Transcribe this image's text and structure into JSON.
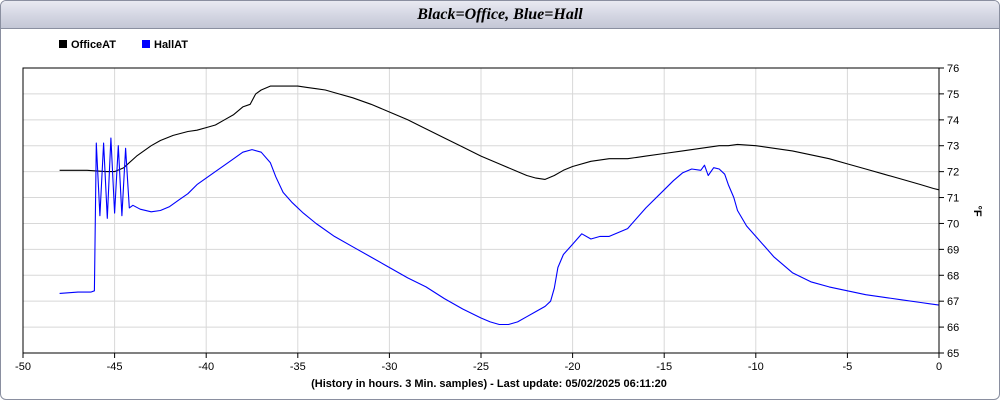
{
  "chart_data": {
    "type": "line",
    "title": "Black=Office, Blue=Hall",
    "xlabel": "(History in hours. 3 Min. samples) - Last update: 05/02/2025 06:11:20",
    "ylabel": "°F",
    "xlim": [
      -50,
      0
    ],
    "ylim": [
      65,
      76
    ],
    "x_ticks": [
      "-50",
      "-45",
      "-40",
      "-35",
      "-30",
      "-25",
      "-20",
      "-15",
      "-10",
      "-5",
      "0"
    ],
    "y_ticks": [
      "65",
      "66",
      "67",
      "68",
      "69",
      "70",
      "71",
      "72",
      "73",
      "74",
      "75",
      "76"
    ],
    "grid": true,
    "legend_position": "top-left",
    "series": [
      {
        "name": "OfficeAT",
        "color": "#000000",
        "x": [
          -48,
          -46.5,
          -45.5,
          -45,
          -44.5,
          -43.8,
          -43,
          -42.5,
          -41.8,
          -41,
          -40.5,
          -40,
          -39.5,
          -39,
          -38.5,
          -38,
          -37.6,
          -37.3,
          -37,
          -36.5,
          -36,
          -35.5,
          -35,
          -34.5,
          -34,
          -33.5,
          -33,
          -32,
          -31,
          -30,
          -29,
          -28,
          -27,
          -26,
          -25,
          -24,
          -23,
          -22.5,
          -22,
          -21.5,
          -21,
          -20.5,
          -20,
          -19,
          -18,
          -17,
          -16,
          -15,
          -14,
          -13,
          -12,
          -11.5,
          -11,
          -10,
          -9,
          -8,
          -7,
          -6,
          -5,
          -4,
          -3,
          -2,
          -1,
          -0.3,
          0
        ],
        "y": [
          72.05,
          72.05,
          72.0,
          72.0,
          72.15,
          72.6,
          73.0,
          73.2,
          73.4,
          73.55,
          73.6,
          73.7,
          73.8,
          74.0,
          74.2,
          74.5,
          74.6,
          75.0,
          75.15,
          75.3,
          75.3,
          75.3,
          75.3,
          75.25,
          75.2,
          75.15,
          75.05,
          74.85,
          74.6,
          74.3,
          74.0,
          73.65,
          73.3,
          72.95,
          72.6,
          72.3,
          72.0,
          71.85,
          71.75,
          71.7,
          71.85,
          72.05,
          72.2,
          72.4,
          72.5,
          72.5,
          72.6,
          72.7,
          72.8,
          72.9,
          73.0,
          73.0,
          73.05,
          73.0,
          72.9,
          72.8,
          72.65,
          72.5,
          72.3,
          72.1,
          71.9,
          71.7,
          71.5,
          71.35,
          71.3
        ]
      },
      {
        "name": "HallAT",
        "color": "#0000ff",
        "x": [
          -48,
          -47,
          -46.3,
          -46.1,
          -46.0,
          -45.8,
          -45.6,
          -45.4,
          -45.2,
          -45.0,
          -44.8,
          -44.6,
          -44.4,
          -44.2,
          -44.0,
          -43.6,
          -43,
          -42.5,
          -42,
          -41.5,
          -41,
          -40.5,
          -40,
          -39.5,
          -39,
          -38.5,
          -38,
          -37.5,
          -37,
          -36.5,
          -36.2,
          -35.8,
          -35.3,
          -34.7,
          -34,
          -33,
          -32,
          -31,
          -30,
          -29,
          -28,
          -27,
          -26,
          -25,
          -24.5,
          -24,
          -23.5,
          -23,
          -22.5,
          -22,
          -21.5,
          -21.2,
          -21,
          -20.8,
          -20.5,
          -20,
          -19.5,
          -19,
          -18.5,
          -18,
          -17,
          -16,
          -15,
          -14.5,
          -14,
          -13.5,
          -13,
          -12.8,
          -12.6,
          -12.3,
          -12,
          -11.7,
          -11.5,
          -11.2,
          -11,
          -10.5,
          -10,
          -9.5,
          -9,
          -8,
          -7,
          -6,
          -5,
          -4,
          -3,
          -2,
          -1,
          -0.5,
          0
        ],
        "y": [
          67.3,
          67.35,
          67.35,
          67.4,
          73.1,
          70.3,
          73.1,
          70.2,
          73.3,
          70.4,
          73.0,
          70.3,
          72.9,
          70.6,
          70.7,
          70.55,
          70.45,
          70.5,
          70.65,
          70.9,
          71.15,
          71.5,
          71.75,
          72.0,
          72.25,
          72.5,
          72.75,
          72.85,
          72.75,
          72.35,
          71.8,
          71.2,
          70.8,
          70.4,
          70.0,
          69.5,
          69.1,
          68.7,
          68.3,
          67.9,
          67.55,
          67.1,
          66.7,
          66.35,
          66.2,
          66.1,
          66.1,
          66.2,
          66.4,
          66.6,
          66.8,
          67.0,
          67.5,
          68.3,
          68.8,
          69.2,
          69.6,
          69.4,
          69.5,
          69.5,
          69.8,
          70.6,
          71.3,
          71.65,
          71.95,
          72.1,
          72.05,
          72.25,
          71.85,
          72.15,
          72.1,
          71.9,
          71.5,
          71.0,
          70.5,
          69.9,
          69.5,
          69.1,
          68.7,
          68.1,
          67.75,
          67.55,
          67.4,
          67.25,
          67.15,
          67.05,
          66.95,
          66.9,
          66.85
        ]
      }
    ]
  }
}
